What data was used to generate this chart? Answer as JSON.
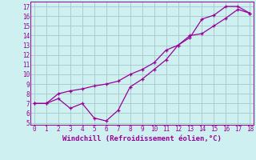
{
  "x": [
    0,
    1,
    2,
    3,
    4,
    5,
    6,
    7,
    8,
    9,
    10,
    11,
    12,
    13,
    14,
    15,
    16,
    17,
    18
  ],
  "line1": [
    7.0,
    7.0,
    7.5,
    6.5,
    7.0,
    5.5,
    5.2,
    6.3,
    8.7,
    9.5,
    10.5,
    11.5,
    13.0,
    13.8,
    15.7,
    16.1,
    17.0,
    17.0,
    16.3
  ],
  "line2": [
    7.0,
    7.0,
    8.0,
    8.3,
    8.5,
    8.8,
    9.0,
    9.3,
    10.0,
    10.5,
    11.2,
    12.5,
    13.0,
    14.0,
    14.2,
    15.0,
    15.8,
    16.7,
    16.3
  ],
  "line_color": "#990099",
  "bg_color": "#cff0f0",
  "grid_color": "#aacccc",
  "xlabel": "Windchill (Refroidissement éolien,°C)",
  "yticks": [
    5,
    6,
    7,
    8,
    9,
    10,
    11,
    12,
    13,
    14,
    15,
    16,
    17
  ],
  "xticks": [
    0,
    1,
    2,
    3,
    4,
    5,
    6,
    7,
    8,
    9,
    10,
    11,
    12,
    13,
    14,
    15,
    16,
    17,
    18
  ],
  "xlim": [
    -0.3,
    18.3
  ],
  "ylim": [
    4.8,
    17.5
  ]
}
